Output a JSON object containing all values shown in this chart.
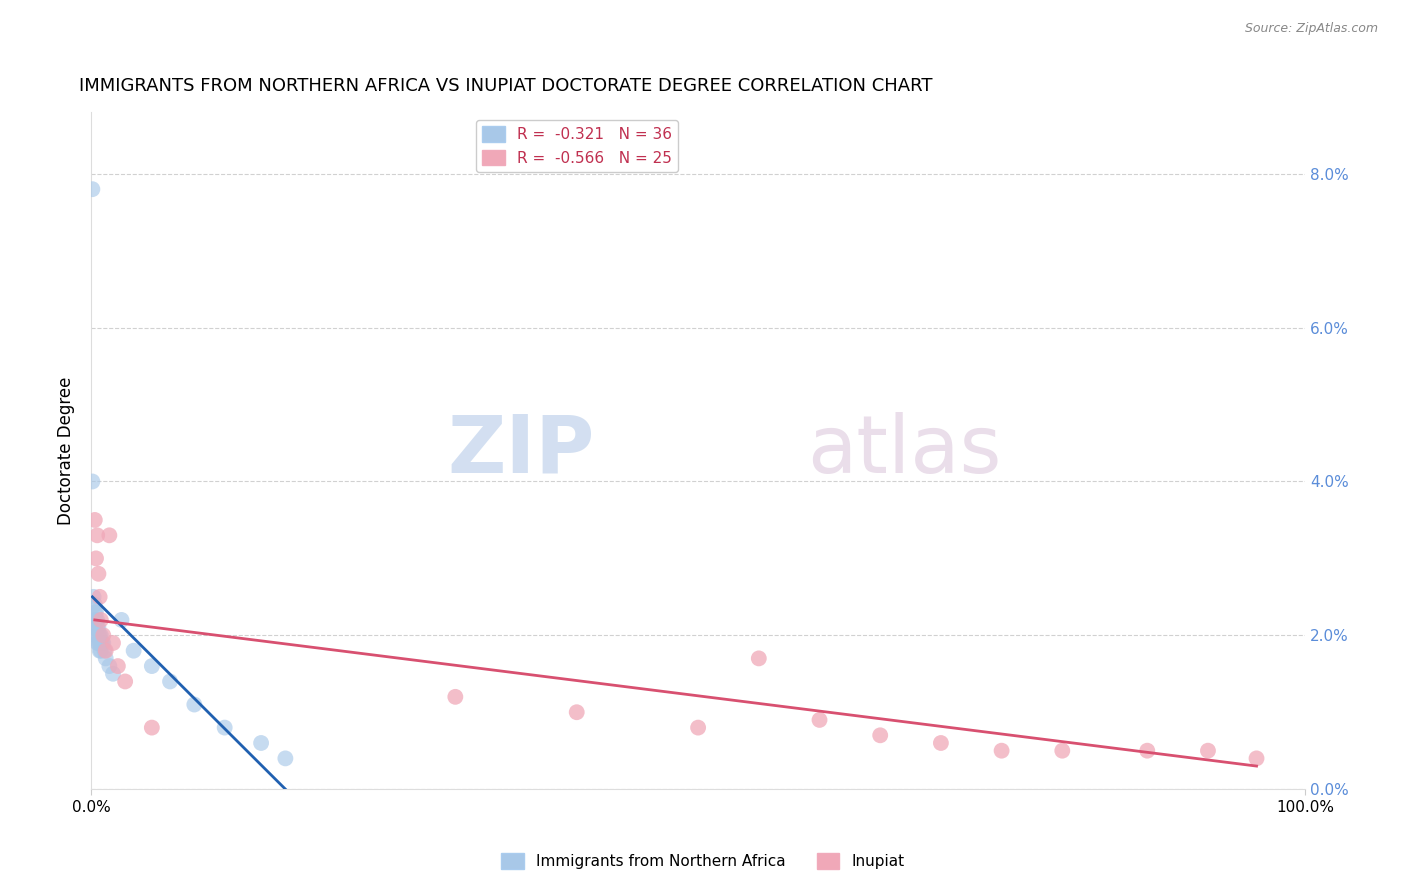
{
  "title": "IMMIGRANTS FROM NORTHERN AFRICA VS INUPIAT DOCTORATE DEGREE CORRELATION CHART",
  "source": "Source: ZipAtlas.com",
  "ylabel": "Doctorate Degree",
  "xlim": [
    0.0,
    1.0
  ],
  "ylim": [
    0.0,
    0.088
  ],
  "yticks": [
    0.0,
    0.02,
    0.04,
    0.06,
    0.08
  ],
  "ytick_labels_right": [
    "0.0%",
    "2.0%",
    "4.0%",
    "6.0%",
    "8.0%"
  ],
  "xticks": [
    0.0,
    1.0
  ],
  "xtick_labels": [
    "0.0%",
    "100.0%"
  ],
  "blue_r": "-0.321",
  "blue_n": "36",
  "pink_r": "-0.566",
  "pink_n": "25",
  "blue_color": "#a8c8e8",
  "pink_color": "#f0a8b8",
  "blue_line_color": "#2060b0",
  "pink_line_color": "#d85070",
  "legend_label_blue": "Immigrants from Northern Africa",
  "legend_label_pink": "Inupiat",
  "blue_dots_x": [
    0.001,
    0.002,
    0.002,
    0.003,
    0.003,
    0.003,
    0.004,
    0.004,
    0.004,
    0.005,
    0.005,
    0.005,
    0.006,
    0.006,
    0.006,
    0.007,
    0.007,
    0.007,
    0.008,
    0.008,
    0.008,
    0.009,
    0.01,
    0.011,
    0.012,
    0.015,
    0.018,
    0.025,
    0.035,
    0.05,
    0.065,
    0.085,
    0.11,
    0.14,
    0.16,
    0.001
  ],
  "blue_dots_y": [
    0.078,
    0.025,
    0.022,
    0.024,
    0.023,
    0.021,
    0.023,
    0.022,
    0.02,
    0.022,
    0.021,
    0.019,
    0.021,
    0.02,
    0.019,
    0.02,
    0.019,
    0.018,
    0.02,
    0.019,
    0.018,
    0.019,
    0.019,
    0.018,
    0.017,
    0.016,
    0.015,
    0.022,
    0.018,
    0.016,
    0.014,
    0.011,
    0.008,
    0.006,
    0.004,
    0.04
  ],
  "pink_dots_x": [
    0.003,
    0.004,
    0.005,
    0.006,
    0.007,
    0.008,
    0.01,
    0.012,
    0.015,
    0.018,
    0.022,
    0.028,
    0.05,
    0.3,
    0.4,
    0.5,
    0.55,
    0.6,
    0.65,
    0.7,
    0.75,
    0.8,
    0.87,
    0.92,
    0.96
  ],
  "pink_dots_y": [
    0.035,
    0.03,
    0.033,
    0.028,
    0.025,
    0.022,
    0.02,
    0.018,
    0.033,
    0.019,
    0.016,
    0.014,
    0.008,
    0.012,
    0.01,
    0.008,
    0.017,
    0.009,
    0.007,
    0.006,
    0.005,
    0.005,
    0.005,
    0.005,
    0.004
  ],
  "blue_line_x": [
    0.001,
    0.16
  ],
  "blue_line_y": [
    0.025,
    0.0
  ],
  "pink_line_x": [
    0.003,
    0.96
  ],
  "pink_line_y": [
    0.022,
    0.003
  ]
}
